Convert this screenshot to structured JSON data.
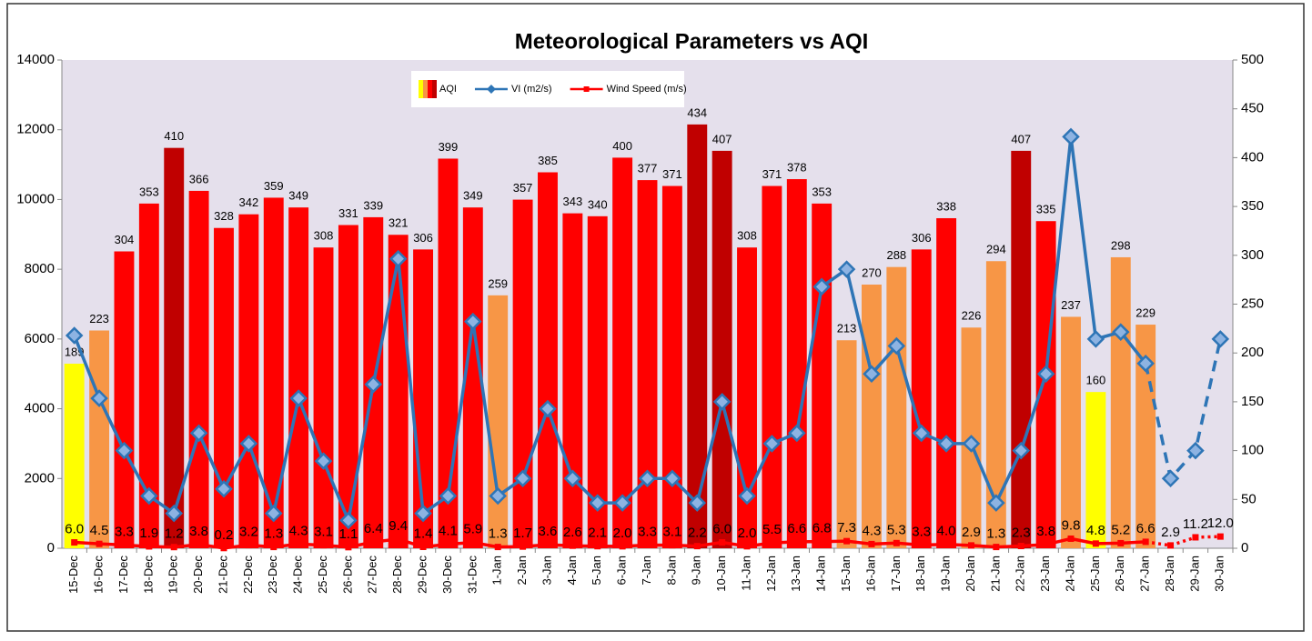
{
  "chart_data": {
    "type": "combo",
    "title": "Meteorological Parameters vs AQI",
    "categories": [
      "15-Dec",
      "16-Dec",
      "17-Dec",
      "18-Dec",
      "19-Dec",
      "20-Dec",
      "21-Dec",
      "22-Dec",
      "23-Dec",
      "24-Dec",
      "25-Dec",
      "26-Dec",
      "27-Dec",
      "28-Dec",
      "29-Dec",
      "30-Dec",
      "31-Dec",
      "1-Jan",
      "2-Jan",
      "3-Jan",
      "4-Jan",
      "5-Jan",
      "6-Jan",
      "7-Jan",
      "8-Jan",
      "9-Jan",
      "10-Jan",
      "11-Jan",
      "12-Jan",
      "13-Jan",
      "14-Jan",
      "15-Jan",
      "16-Jan",
      "17-Jan",
      "18-Jan",
      "19-Jan",
      "20-Jan",
      "21-Jan",
      "22-Jan",
      "23-Jan",
      "24-Jan",
      "25-Jan",
      "26-Jan",
      "27-Jan",
      "28-Jan",
      "29-Jan",
      "30-Jan"
    ],
    "series": [
      {
        "name": "AQI",
        "type": "bar",
        "axis": "y2",
        "values": [
          189,
          223,
          304,
          353,
          410,
          366,
          328,
          342,
          359,
          349,
          308,
          331,
          339,
          321,
          306,
          399,
          349,
          259,
          357,
          385,
          343,
          340,
          400,
          377,
          371,
          434,
          407,
          308,
          371,
          378,
          353,
          213,
          270,
          288,
          306,
          338,
          226,
          294,
          407,
          335,
          237,
          160,
          298,
          229,
          null,
          null,
          null
        ],
        "colors": [
          "#ffff00",
          "#f79646",
          "#ff0000",
          "#ff0000",
          "#c00000",
          "#ff0000",
          "#ff0000",
          "#ff0000",
          "#ff0000",
          "#ff0000",
          "#ff0000",
          "#ff0000",
          "#ff0000",
          "#ff0000",
          "#ff0000",
          "#ff0000",
          "#ff0000",
          "#f79646",
          "#ff0000",
          "#ff0000",
          "#ff0000",
          "#ff0000",
          "#ff0000",
          "#ff0000",
          "#ff0000",
          "#c00000",
          "#c00000",
          "#ff0000",
          "#ff0000",
          "#ff0000",
          "#ff0000",
          "#f79646",
          "#f79646",
          "#f79646",
          "#ff0000",
          "#ff0000",
          "#f79646",
          "#f79646",
          "#c00000",
          "#ff0000",
          "#f79646",
          "#ffff00",
          "#f79646",
          "#f79646",
          null,
          null,
          null
        ]
      },
      {
        "name": "VI (m2/s)",
        "type": "line",
        "color": "#2e75b6",
        "marker": "diamond",
        "dashed_from": 43,
        "values": [
          6100,
          4300,
          2800,
          1500,
          1000,
          3300,
          1700,
          3000,
          1000,
          4300,
          2500,
          800,
          4700,
          8300,
          1000,
          1500,
          6500,
          1500,
          2000,
          4000,
          2000,
          1300,
          1300,
          2000,
          2000,
          1300,
          4200,
          1500,
          3000,
          3300,
          7500,
          8000,
          5000,
          5800,
          3300,
          3000,
          3000,
          1300,
          2800,
          5000,
          11800,
          6000,
          6200,
          5300,
          2000,
          2800,
          6000
        ]
      },
      {
        "name": "Wind Speed (m/s)",
        "type": "line",
        "axis": "y2",
        "color": "#ff0000",
        "marker": "square",
        "dashed_from": 43,
        "values": [
          6,
          4.5,
          3.3,
          1.9,
          1.2,
          3.8,
          0.2,
          3.2,
          1.3,
          4.3,
          3.1,
          1.1,
          6.4,
          9.4,
          1.4,
          4.1,
          5.9,
          1.3,
          1.7,
          3.6,
          2.6,
          2.1,
          2,
          3.3,
          3.1,
          2.2,
          6,
          2,
          5.5,
          6.6,
          6.8,
          7.3,
          4.3,
          5.3,
          3.3,
          4,
          2.9,
          1.3,
          2.3,
          3.8,
          9.8,
          4.8,
          5.2,
          6.6,
          2.9,
          11.2,
          12
        ],
        "value_labels": [
          "6.0",
          "4.5",
          "3.3",
          "1.9",
          "1.2",
          "3.8",
          "0.2",
          "3.2",
          "1.3",
          "4.3",
          "3.1",
          "1.1",
          "6.4",
          "9.4",
          "1.4",
          "4.1",
          "5.9",
          "1.3",
          "1.7",
          "3.6",
          "2.6",
          "2.1",
          "2.0",
          "3.3",
          "3.1",
          "2.2",
          "6.0",
          "2.0",
          "5.5",
          "6.6",
          "6.8",
          "7.3",
          "4.3",
          "5.3",
          "3.3",
          "4.0",
          "2.9",
          "1.3",
          "2.3",
          "3.8",
          "9.8",
          "4.8",
          "5.2",
          "6.6",
          "2.9",
          "11.2",
          "12.0"
        ]
      }
    ],
    "ylim": [
      0,
      14000
    ],
    "yticks": [
      0,
      2000,
      4000,
      6000,
      8000,
      10000,
      12000,
      14000
    ],
    "y2lim": [
      0,
      500
    ],
    "y2ticks": [
      0,
      50,
      100,
      150,
      200,
      250,
      300,
      350,
      400,
      450,
      500
    ],
    "grid": false,
    "legend": "top"
  }
}
